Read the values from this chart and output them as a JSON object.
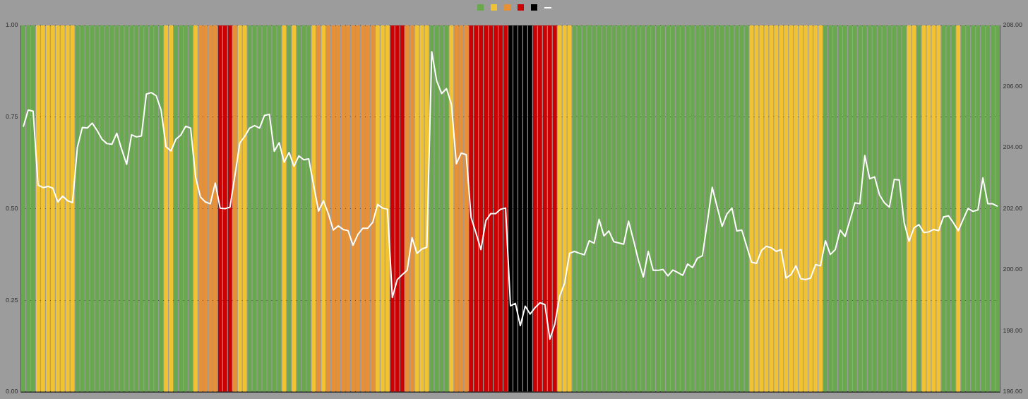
{
  "chart_data": {
    "type": "bar",
    "stacked": true,
    "grid": "y",
    "marker": "none",
    "categories": [
      null,
      null,
      null,
      null,
      null,
      null,
      null,
      null,
      null,
      null,
      null,
      null,
      null,
      null,
      null,
      null,
      null,
      null,
      null,
      null,
      null,
      null,
      null,
      null,
      null,
      null,
      null,
      null,
      null,
      null,
      null,
      null,
      null,
      null,
      null,
      null,
      null,
      null,
      null,
      null,
      null,
      null,
      null,
      null,
      null,
      null,
      null,
      null,
      null,
      null,
      null,
      null,
      null,
      null,
      null,
      null,
      null,
      null,
      null,
      null,
      null,
      null,
      null,
      null,
      null,
      null,
      null,
      null,
      null,
      null,
      null,
      null,
      null,
      null,
      null,
      null,
      null,
      null,
      null,
      null,
      null,
      null,
      null,
      null,
      null,
      null,
      null,
      null,
      null,
      null,
      null,
      null,
      null,
      null,
      null,
      null,
      null,
      null,
      null,
      null,
      null,
      null,
      null,
      null,
      null,
      null,
      null,
      null,
      null,
      null,
      null,
      null,
      null,
      null,
      null,
      null,
      null,
      null,
      null,
      null,
      null,
      null,
      null,
      null,
      null,
      null,
      null,
      null,
      null,
      null,
      null,
      null,
      null,
      null,
      null,
      null,
      null,
      null,
      null,
      null,
      null,
      null,
      null,
      null,
      null,
      null,
      null,
      null,
      null,
      null,
      null,
      null,
      null,
      null,
      null,
      null,
      null,
      null,
      null,
      null,
      null,
      null,
      null,
      null,
      null,
      null,
      null,
      null,
      null,
      null,
      null,
      null,
      null,
      null,
      null,
      null,
      null,
      null,
      null,
      null,
      null,
      null,
      null,
      null,
      null,
      null,
      null,
      null,
      null,
      null,
      null,
      null,
      null,
      null,
      null,
      null,
      null,
      null,
      null
    ],
    "ylim": [
      0,
      1
    ],
    "yticks": [
      {
        "value": 0,
        "label": "0.00"
      },
      {
        "value": 0.25,
        "label": "0.25"
      },
      {
        "value": 0.5,
        "label": "0.50"
      },
      {
        "value": 0.75,
        "label": "0.75"
      },
      {
        "value": 1,
        "label": "1.00"
      }
    ],
    "y2lim": [
      196,
      208
    ],
    "y2ticks": [
      {
        "value": 196,
        "label": "196.00"
      },
      {
        "value": 198,
        "label": "198.00"
      },
      {
        "value": 200,
        "label": "200.00"
      },
      {
        "value": 202,
        "label": "202.00"
      },
      {
        "value": 204,
        "label": "204.00"
      },
      {
        "value": 206,
        "label": "206.00"
      },
      {
        "value": 208,
        "label": "208.00"
      }
    ],
    "series": [
      {
        "color": "#6aa84f",
        "values": [
          1,
          1,
          1,
          null,
          null,
          null,
          null,
          null,
          null,
          null,
          null,
          1,
          1,
          1,
          1,
          1,
          1,
          1,
          1,
          1,
          1,
          1,
          1,
          1,
          1,
          1,
          1,
          1,
          1,
          null,
          null,
          1,
          1,
          1,
          1,
          null,
          null,
          null,
          null,
          null,
          null,
          null,
          null,
          null,
          null,
          null,
          1,
          1,
          1,
          1,
          1,
          1,
          1,
          null,
          1,
          null,
          1,
          1,
          1,
          null,
          null,
          null,
          null,
          null,
          null,
          null,
          null,
          null,
          null,
          null,
          null,
          null,
          null,
          null,
          null,
          null,
          null,
          null,
          null,
          null,
          null,
          null,
          null,
          1,
          1,
          1,
          1,
          null,
          null,
          null,
          null,
          null,
          null,
          null,
          null,
          null,
          null,
          null,
          null,
          null,
          null,
          null,
          null,
          null,
          null,
          null,
          null,
          null,
          null,
          null,
          null,
          null,
          1,
          1,
          1,
          1,
          1,
          1,
          1,
          1,
          1,
          1,
          1,
          1,
          1,
          1,
          1,
          1,
          1,
          1,
          1,
          1,
          1,
          1,
          1,
          1,
          1,
          1,
          1,
          1,
          1,
          1,
          1,
          1,
          1,
          1,
          1,
          1,
          null,
          null,
          null,
          null,
          null,
          null,
          null,
          null,
          null,
          null,
          null,
          null,
          null,
          null,
          null,
          1,
          1,
          1,
          1,
          1,
          1,
          1,
          1,
          1,
          1,
          1,
          1,
          1,
          1,
          1,
          1,
          1,
          null,
          null,
          1,
          null,
          null,
          null,
          null,
          1,
          1,
          1,
          null,
          1,
          1,
          1,
          1,
          1,
          1,
          1,
          1
        ]
      },
      {
        "color": "#f1c232",
        "values": [
          null,
          null,
          null,
          1,
          1,
          1,
          1,
          1,
          1,
          1,
          1,
          null,
          null,
          null,
          null,
          null,
          null,
          null,
          null,
          null,
          null,
          null,
          null,
          null,
          null,
          null,
          null,
          null,
          null,
          1,
          1,
          null,
          null,
          null,
          null,
          1,
          null,
          null,
          null,
          null,
          null,
          null,
          null,
          null,
          1,
          1,
          null,
          null,
          null,
          null,
          null,
          null,
          null,
          1,
          null,
          1,
          null,
          null,
          null,
          1,
          null,
          1,
          null,
          null,
          null,
          null,
          null,
          null,
          null,
          null,
          null,
          null,
          1,
          1,
          1,
          null,
          null,
          null,
          null,
          null,
          1,
          1,
          1,
          null,
          null,
          null,
          null,
          1,
          null,
          null,
          null,
          null,
          null,
          null,
          null,
          null,
          null,
          null,
          null,
          null,
          null,
          null,
          null,
          null,
          null,
          null,
          null,
          null,
          null,
          1,
          1,
          1,
          null,
          null,
          null,
          null,
          null,
          null,
          null,
          null,
          null,
          null,
          null,
          null,
          null,
          null,
          null,
          null,
          null,
          null,
          null,
          null,
          null,
          null,
          null,
          null,
          null,
          null,
          null,
          null,
          null,
          null,
          null,
          null,
          null,
          null,
          null,
          null,
          1,
          1,
          1,
          1,
          1,
          1,
          1,
          1,
          1,
          1,
          1,
          1,
          1,
          1,
          1,
          null,
          null,
          null,
          null,
          null,
          null,
          null,
          null,
          null,
          null,
          null,
          null,
          null,
          null,
          null,
          null,
          null,
          1,
          1,
          null,
          1,
          1,
          1,
          1,
          null,
          null,
          null,
          1,
          null,
          null,
          null,
          null,
          null,
          null,
          null,
          null
        ]
      },
      {
        "color": "#e69138",
        "values": [
          null,
          null,
          null,
          null,
          null,
          null,
          null,
          null,
          null,
          null,
          null,
          null,
          null,
          null,
          null,
          null,
          null,
          null,
          null,
          null,
          null,
          null,
          null,
          null,
          null,
          null,
          null,
          null,
          null,
          null,
          null,
          null,
          null,
          null,
          null,
          null,
          1,
          1,
          1,
          1,
          null,
          null,
          null,
          1,
          null,
          null,
          null,
          null,
          null,
          null,
          null,
          null,
          null,
          null,
          null,
          null,
          null,
          null,
          null,
          null,
          1,
          null,
          1,
          1,
          1,
          1,
          1,
          1,
          1,
          1,
          1,
          1,
          null,
          null,
          null,
          null,
          null,
          null,
          1,
          1,
          null,
          null,
          null,
          null,
          null,
          null,
          null,
          null,
          1,
          1,
          1,
          null,
          null,
          null,
          null,
          null,
          null,
          null,
          null,
          null,
          null,
          null,
          null,
          null,
          null,
          null,
          null,
          null,
          null,
          null,
          null,
          null,
          null,
          null,
          null,
          null,
          null,
          null,
          null,
          null,
          null,
          null,
          null,
          null,
          null,
          null,
          null,
          null,
          null,
          null,
          null,
          null,
          null,
          null,
          null,
          null,
          null,
          null,
          null,
          null,
          null,
          null,
          null,
          null,
          null,
          null,
          null,
          null,
          null,
          null,
          null,
          null,
          null,
          null,
          null,
          null,
          null,
          null,
          null,
          null,
          null,
          null,
          null,
          null,
          null,
          null,
          null,
          null,
          null,
          null,
          null,
          null,
          null,
          null,
          null,
          null,
          null,
          null,
          null,
          null,
          null,
          null,
          null,
          null,
          null,
          null,
          null,
          null,
          null,
          null,
          null,
          null,
          null,
          null,
          null,
          null,
          null,
          null,
          null
        ]
      },
      {
        "color": "#cc0000",
        "values": [
          null,
          null,
          null,
          null,
          null,
          null,
          null,
          null,
          null,
          null,
          null,
          null,
          null,
          null,
          null,
          null,
          null,
          null,
          null,
          null,
          null,
          null,
          null,
          null,
          null,
          null,
          null,
          null,
          null,
          null,
          null,
          null,
          null,
          null,
          null,
          null,
          null,
          null,
          null,
          null,
          1,
          1,
          1,
          null,
          null,
          null,
          null,
          null,
          null,
          null,
          null,
          null,
          null,
          null,
          null,
          null,
          null,
          null,
          null,
          null,
          null,
          null,
          null,
          null,
          null,
          null,
          null,
          null,
          null,
          null,
          null,
          null,
          null,
          null,
          null,
          1,
          1,
          1,
          null,
          null,
          null,
          null,
          null,
          null,
          null,
          null,
          null,
          null,
          null,
          null,
          null,
          1,
          1,
          1,
          1,
          1,
          1,
          1,
          1,
          null,
          null,
          null,
          null,
          null,
          1,
          1,
          1,
          1,
          1,
          null,
          null,
          null,
          null,
          null,
          null,
          null,
          null,
          null,
          null,
          null,
          null,
          null,
          null,
          null,
          null,
          null,
          null,
          null,
          null,
          null,
          null,
          null,
          null,
          null,
          null,
          null,
          null,
          null,
          null,
          null,
          null,
          null,
          null,
          null,
          null,
          null,
          null,
          null,
          null,
          null,
          null,
          null,
          null,
          null,
          null,
          null,
          null,
          null,
          null,
          null,
          null,
          null,
          null,
          null,
          null,
          null,
          null,
          null,
          null,
          null,
          null,
          null,
          null,
          null,
          null,
          null,
          null,
          null,
          null,
          null,
          null,
          null,
          null,
          null,
          null,
          null,
          null,
          null,
          null,
          null,
          null,
          null,
          null,
          null,
          null,
          null,
          null,
          null,
          null
        ]
      },
      {
        "color": "#000000",
        "values": [
          null,
          null,
          null,
          null,
          null,
          null,
          null,
          null,
          null,
          null,
          null,
          null,
          null,
          null,
          null,
          null,
          null,
          null,
          null,
          null,
          null,
          null,
          null,
          null,
          null,
          null,
          null,
          null,
          null,
          null,
          null,
          null,
          null,
          null,
          null,
          null,
          null,
          null,
          null,
          null,
          null,
          null,
          null,
          null,
          null,
          null,
          null,
          null,
          null,
          null,
          null,
          null,
          null,
          null,
          null,
          null,
          null,
          null,
          null,
          null,
          null,
          null,
          null,
          null,
          null,
          null,
          null,
          null,
          null,
          null,
          null,
          null,
          null,
          null,
          null,
          null,
          null,
          null,
          null,
          null,
          null,
          null,
          null,
          null,
          null,
          null,
          null,
          null,
          null,
          null,
          null,
          null,
          null,
          null,
          null,
          null,
          null,
          null,
          null,
          1,
          1,
          1,
          1,
          1,
          null,
          null,
          null,
          null,
          null,
          null,
          null,
          null,
          null,
          null,
          null,
          null,
          null,
          null,
          null,
          null,
          null,
          null,
          null,
          null,
          null,
          null,
          null,
          null,
          null,
          null,
          null,
          null,
          null,
          null,
          null,
          null,
          null,
          null,
          null,
          null,
          null,
          null,
          null,
          null,
          null,
          null,
          null,
          null,
          null,
          null,
          null,
          null,
          null,
          null,
          null,
          null,
          null,
          null,
          null,
          null,
          null,
          null,
          null,
          null,
          null,
          null,
          null,
          null,
          null,
          null,
          null,
          null,
          null,
          null,
          null,
          null,
          null,
          null,
          null,
          null,
          null,
          null,
          null,
          null,
          null,
          null,
          null,
          null,
          null,
          null,
          null,
          null,
          null,
          null,
          null,
          null,
          null,
          null,
          null
        ]
      },
      {
        "type": "line",
        "axis": "y2",
        "color": "#ffffff",
        "values": [
          204.68,
          205.23,
          205.19,
          202.77,
          202.69,
          202.73,
          202.67,
          202.22,
          202.41,
          202.26,
          202.2,
          204.02,
          204.66,
          204.64,
          204.8,
          204.56,
          204.27,
          204.13,
          204.11,
          204.47,
          203.94,
          203.45,
          204.42,
          204.35,
          204.38,
          205.75,
          205.8,
          205.7,
          205.23,
          204.03,
          203.89,
          204.27,
          204.41,
          204.7,
          204.64,
          203.04,
          202.38,
          202.22,
          202.16,
          202.84,
          202.02,
          202.0,
          202.05,
          203.08,
          204.15,
          204.37,
          204.64,
          204.72,
          204.64,
          205.05,
          205.09,
          203.88,
          204.16,
          203.52,
          203.84,
          203.39,
          203.73,
          203.6,
          203.63,
          202.77,
          201.92,
          202.26,
          201.83,
          201.3,
          201.44,
          201.32,
          201.28,
          200.8,
          201.16,
          201.36,
          201.36,
          201.55,
          202.14,
          202.02,
          201.98,
          199.09,
          199.68,
          199.84,
          199.98,
          201.05,
          200.54,
          200.68,
          200.74,
          207.14,
          206.19,
          205.77,
          205.93,
          205.42,
          203.47,
          203.82,
          203.77,
          201.71,
          201.2,
          200.66,
          201.61,
          201.84,
          201.84,
          201.98,
          202.02,
          198.82,
          198.9,
          198.17,
          198.81,
          198.55,
          198.76,
          198.92,
          198.86,
          197.73,
          198.21,
          199.13,
          199.56,
          200.54,
          200.6,
          200.54,
          200.49,
          200.95,
          200.87,
          201.65,
          201.11,
          201.27,
          200.92,
          200.88,
          200.84,
          201.59,
          200.97,
          200.31,
          199.76,
          200.6,
          199.98,
          199.98,
          200.01,
          199.8,
          199.99,
          199.91,
          199.82,
          200.19,
          200.07,
          200.38,
          200.46,
          201.55,
          202.7,
          202.06,
          201.42,
          201.83,
          202.02,
          201.27,
          201.3,
          200.77,
          200.25,
          200.21,
          200.63,
          200.77,
          200.72,
          200.6,
          200.66,
          199.73,
          199.84,
          200.13,
          199.7,
          199.68,
          199.73,
          200.17,
          200.13,
          200.95,
          200.5,
          200.66,
          201.3,
          201.09,
          201.63,
          202.19,
          202.16,
          203.74,
          202.98,
          203.04,
          202.45,
          202.19,
          202.05,
          202.96,
          202.94,
          201.55,
          200.93,
          201.37,
          201.48,
          201.22,
          201.24,
          201.32,
          201.28,
          201.73,
          201.77,
          201.54,
          201.28,
          201.65,
          202.01,
          201.91,
          201.96,
          203.01,
          202.16,
          202.16,
          202.08
        ]
      }
    ]
  }
}
